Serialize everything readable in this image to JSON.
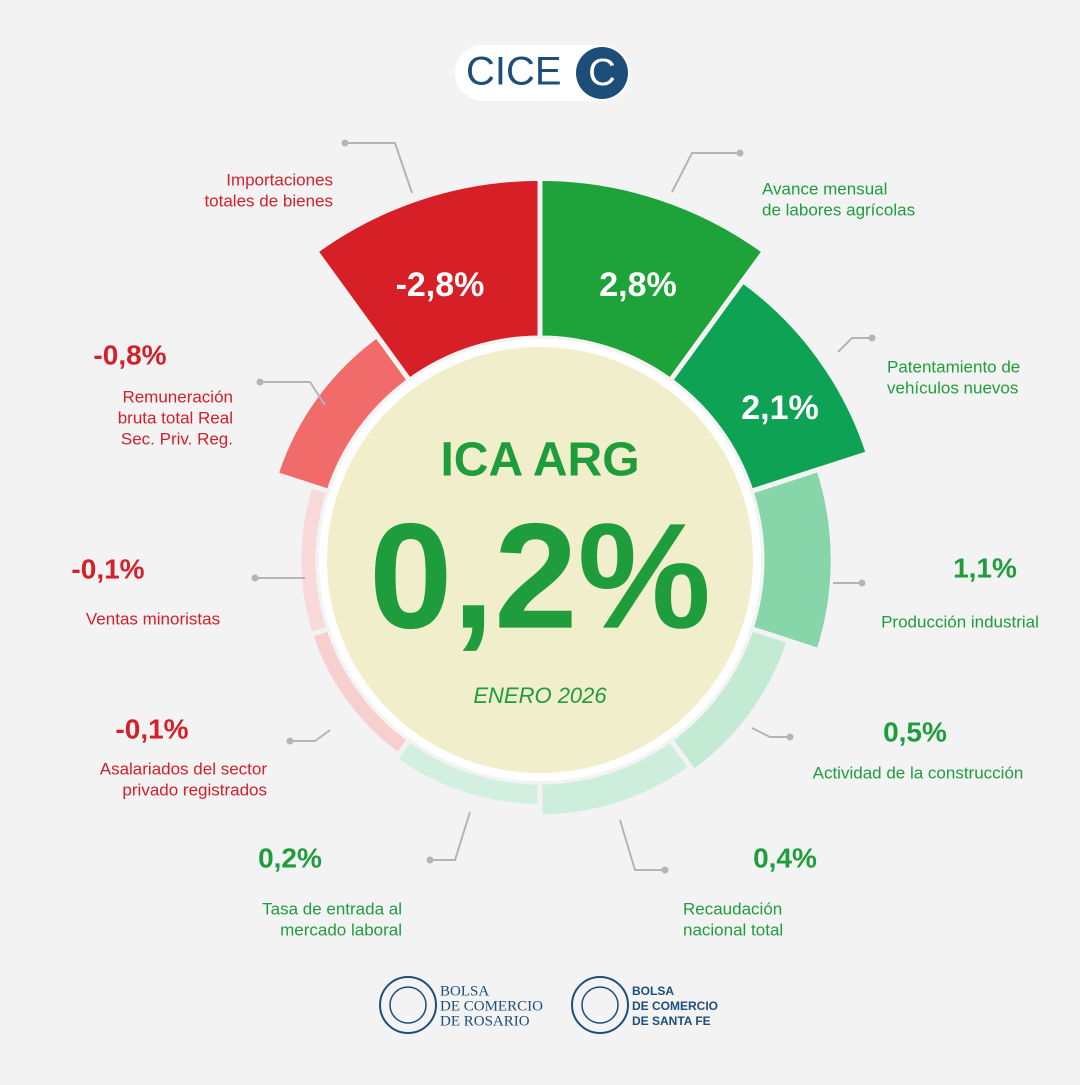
{
  "chart_data": {
    "type": "rose",
    "logo_text": "CICE",
    "logo_mark": "C",
    "title": "ICA ARG",
    "headline": "0,2%",
    "period": "ENERO 2026",
    "categories": [
      [
        "Avance mensual",
        "de labores agrícolas"
      ],
      [
        "Patentamiento de",
        "vehículos nuevos"
      ],
      [
        "Producción industrial"
      ],
      [
        "Actividad de la construcción"
      ],
      [
        "Recaudación",
        "nacional total"
      ],
      [
        "Tasa de entrada al",
        "mercado laboral"
      ],
      [
        "Asalariados del sector",
        "privado registrados"
      ],
      [
        "Ventas minoristas"
      ],
      [
        "Remuneración",
        "bruta total Real",
        "Sec. Priv. Reg."
      ],
      [
        "Importaciones",
        "totales de bienes"
      ]
    ],
    "values": [
      2.8,
      2.1,
      1.1,
      0.5,
      0.4,
      0.2,
      -0.1,
      -0.1,
      -0.8,
      -2.8
    ],
    "value_labels": [
      "2,8%",
      "2,1%",
      "1,1%",
      "0,5%",
      "0,4%",
      "0,2%",
      "-0,1%",
      "-0,1%",
      "-0,8%",
      "-2,8%"
    ],
    "colors": [
      "#1ea23a",
      "#0da254",
      "#86d6a9",
      "#c3ead3",
      "#cdeedc",
      "#d3efe0",
      "#f7cfcf",
      "#f9dada",
      "#f26b6b",
      "#d71f27"
    ],
    "positive_color": "#1f9d3c",
    "negative_color": "#d3202a",
    "footer": [
      [
        "BOLSA",
        "DE COMERCIO",
        "DE ROSARIO"
      ],
      [
        "BOLSA",
        "DE COMERCIO",
        "DE SANTA FE"
      ]
    ]
  }
}
